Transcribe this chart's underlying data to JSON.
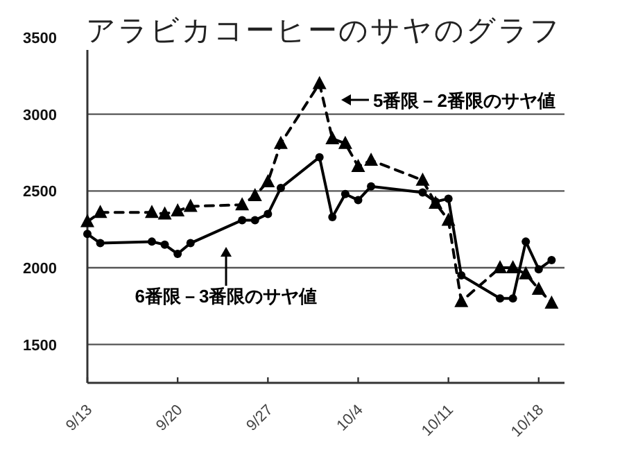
{
  "chart_data": {
    "type": "line",
    "title": "アラビカコーヒーのサヤのグラフ",
    "ylim": [
      1250,
      3500
    ],
    "yticks": [
      1500,
      2000,
      2500,
      3000,
      3500
    ],
    "xlim": [
      "--09-13",
      "--10-20"
    ],
    "xticks": [
      {
        "value": "--09-13",
        "label": "9/13"
      },
      {
        "value": "--09-20",
        "label": "9/20"
      },
      {
        "value": "--09-27",
        "label": "9/27"
      },
      {
        "value": "--10-04",
        "label": "10/4"
      },
      {
        "value": "--10-11",
        "label": "10/11"
      },
      {
        "value": "--10-18",
        "label": "10/18"
      }
    ],
    "grid": "y",
    "series": [
      {
        "color": "#000000",
        "marker": "circle",
        "line_style": "solid",
        "x": [
          "--09-13",
          "--09-14",
          "--09-18",
          "--09-19",
          "--09-20",
          "--09-21",
          "--09-25",
          "--09-26",
          "--09-27",
          "--09-28",
          "--10-01",
          "--10-02",
          "--10-03",
          "--10-04",
          "--10-05",
          "--10-09",
          "--10-10",
          "--10-11",
          "--10-12",
          "--10-15",
          "--10-16",
          "--10-17",
          "--10-18",
          "--10-19"
        ],
        "values": [
          2220,
          2160,
          2170,
          2150,
          2090,
          2160,
          2310,
          2310,
          2350,
          2520,
          2720,
          2330,
          2480,
          2440,
          2530,
          2490,
          2430,
          2450,
          1950,
          1800,
          1800,
          2170,
          1990,
          2050
        ]
      },
      {
        "color": "#000000",
        "marker": "triangle",
        "line_style": "dashed",
        "x": [
          "--09-13",
          "--09-14",
          "--09-18",
          "--09-19",
          "--09-20",
          "--09-21",
          "--09-25",
          "--09-26",
          "--09-27",
          "--09-28",
          "--10-01",
          "--10-02",
          "--10-03",
          "--10-04",
          "--10-05",
          "--10-09",
          "--10-10",
          "--10-11",
          "--10-12",
          "--10-15",
          "--10-16",
          "--10-17",
          "--10-18",
          "--10-19"
        ],
        "values": [
          2300,
          2360,
          2360,
          2350,
          2370,
          2400,
          2410,
          2470,
          2560,
          2810,
          3200,
          2840,
          2810,
          2660,
          2700,
          2570,
          2420,
          2310,
          1780,
          2000,
          2000,
          1960,
          1860,
          1770
        ]
      }
    ],
    "annotations": [
      "5番限－2番限のサヤ値",
      "6番限－3番限のサヤ値"
    ]
  }
}
